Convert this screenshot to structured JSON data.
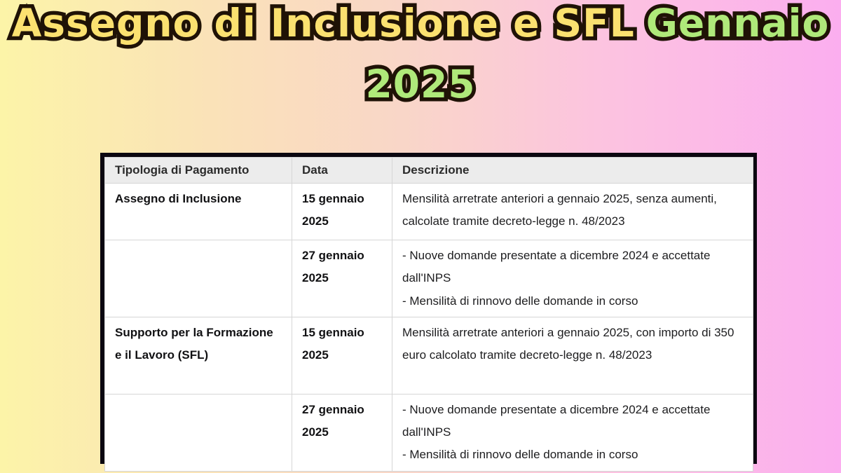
{
  "title": {
    "line1_yellow": "Assegno di Inclusione e SFL",
    "line1_green": "Gennaio",
    "line2_green": "2025",
    "yellow_color": "#fbe170",
    "green_color": "#afe97a",
    "outline_color": "#1f1206"
  },
  "background": {
    "gradient_left": "#fcf4a8",
    "gradient_middle": "#f9d6c8",
    "gradient_right": "#fbaeef"
  },
  "table": {
    "headers": [
      "Tipologia di Pagamento",
      "Data",
      "Descrizione"
    ],
    "header_bg": "#ececec",
    "border_color": "#0b0710",
    "rows": [
      {
        "type": "Assegno di Inclusione",
        "date": "15 gennaio 2025",
        "description": [
          "Mensilità arretrate anteriori a gennaio 2025, senza aumenti, calcolate tramite decreto-legge n. 48/2023"
        ]
      },
      {
        "type": "",
        "date": "27 gennaio 2025",
        "description": [
          "- Nuove domande presentate a dicembre 2024 e accettate dall'INPS",
          "- Mensilità di rinnovo delle domande in corso"
        ]
      },
      {
        "type": "Supporto per la Formazione e il Lavoro (SFL)",
        "date": "15 gennaio 2025",
        "description": [
          "Mensilità arretrate anteriori a gennaio 2025, con importo di 350 euro calcolato tramite decreto-legge n. 48/2023"
        ]
      },
      {
        "type": "",
        "date": "27 gennaio 2025",
        "description": [
          "- Nuove domande presentate a dicembre 2024 e accettate dall'INPS",
          "- Mensilità di rinnovo delle domande in corso"
        ]
      }
    ]
  }
}
